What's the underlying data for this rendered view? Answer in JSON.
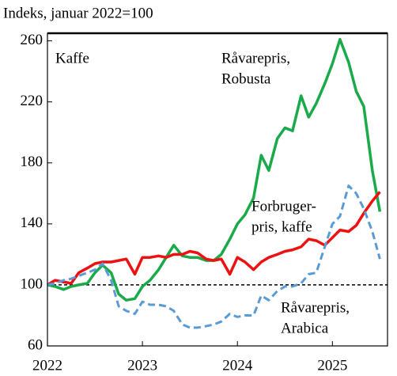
{
  "chart_data": {
    "type": "line",
    "title": "Indeks, januar 2022=100",
    "x": [
      2022.0,
      2022.08,
      2022.17,
      2022.25,
      2022.33,
      2022.42,
      2022.5,
      2022.58,
      2022.67,
      2022.75,
      2022.83,
      2022.92,
      2023.0,
      2023.08,
      2023.17,
      2023.25,
      2023.33,
      2023.42,
      2023.5,
      2023.58,
      2023.67,
      2023.75,
      2023.83,
      2023.92,
      2024.0,
      2024.08,
      2024.17,
      2024.25,
      2024.33,
      2024.42,
      2024.5,
      2024.58,
      2024.67,
      2024.75,
      2024.83,
      2024.92,
      2025.0,
      2025.08,
      2025.17,
      2025.25,
      2025.33,
      2025.42,
      2025.5
    ],
    "series": [
      {
        "name": "Råvarepris, Robusta",
        "color": "#1aaa4a",
        "dash": false,
        "values": [
          100,
          99,
          97,
          99,
          100,
          101,
          108,
          113,
          108,
          94,
          90,
          91,
          99,
          103,
          110,
          118,
          126,
          119,
          118,
          118,
          116,
          116,
          120,
          130,
          140,
          146,
          157,
          185,
          175,
          196,
          203,
          201,
          224,
          210,
          219,
          232,
          245,
          261,
          246,
          227,
          217,
          175,
          148
        ]
      },
      {
        "name": "Forbrugerpris, kaffe",
        "color": "#ee1111",
        "dash": false,
        "values": [
          100,
          103,
          102,
          101,
          108,
          111,
          114,
          115,
          115,
          116,
          117,
          107,
          118,
          118,
          119,
          118,
          120,
          120,
          122,
          121,
          117,
          116,
          117,
          107,
          118,
          115,
          110,
          115,
          118,
          120,
          122,
          123,
          125,
          130,
          129,
          126,
          131,
          136,
          135,
          139,
          147,
          155,
          161
        ]
      },
      {
        "name": "Råvarepris, Arabica",
        "color": "#5b9bd5",
        "dash": true,
        "values": [
          100,
          101,
          103,
          104,
          106,
          108,
          110,
          114,
          103,
          86,
          83,
          81,
          89,
          87,
          87,
          86,
          83,
          74,
          72,
          72,
          73,
          74,
          76,
          81,
          79,
          80,
          80,
          93,
          90,
          96,
          99,
          99,
          101,
          107,
          108,
          125,
          140,
          145,
          165,
          160,
          150,
          135,
          117
        ]
      }
    ],
    "annotations": [
      {
        "text": [
          "Kaffe"
        ]
      },
      {
        "text": [
          "Råvarepris,",
          "Robusta"
        ]
      },
      {
        "text": [
          "Forbruger-",
          "pris, kaffe"
        ]
      },
      {
        "text": [
          "Råvarepris,",
          "Arabica"
        ]
      }
    ],
    "reference_line": 100,
    "xlim": [
      2022,
      2025.58
    ],
    "xticks": [
      2022,
      2023,
      2024,
      2025
    ],
    "ylim": [
      60,
      265
    ],
    "yticks": [
      60,
      100,
      140,
      180,
      220,
      260
    ]
  }
}
